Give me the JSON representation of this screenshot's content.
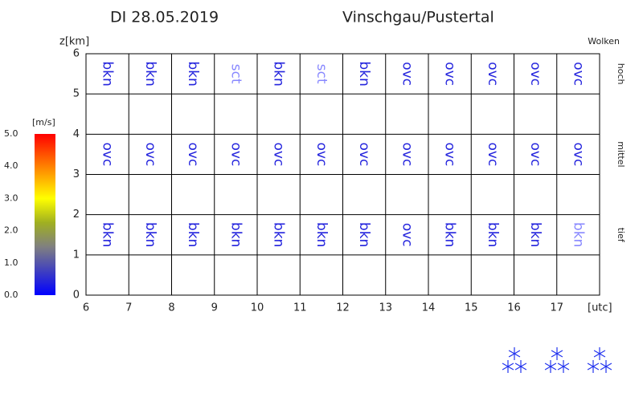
{
  "chart_data": {
    "type": "cloud-grid",
    "date": "DI 28.05.2019",
    "title": "Vinschgau/Pustertal",
    "y_label": "z[km]",
    "right_label": "Wolken",
    "x_unit": "[utc]",
    "xlim": [
      6,
      18
    ],
    "xticks": [
      6,
      7,
      8,
      9,
      10,
      11,
      12,
      13,
      14,
      15,
      16,
      17
    ],
    "ylim": [
      0,
      6
    ],
    "yticks": [
      0,
      1,
      2,
      3,
      4,
      5,
      6
    ],
    "layers": [
      {
        "name": "hoch",
        "values": [
          "bkn",
          "bkn",
          "bkn",
          "sct",
          "bkn",
          "sct",
          "bkn",
          "ovc",
          "ovc",
          "ovc",
          "ovc",
          "ovc"
        ],
        "colors": [
          "#2222dd",
          "#2222dd",
          "#2222dd",
          "#8888ff",
          "#2222dd",
          "#8888ff",
          "#2222dd",
          "#2222dd",
          "#2222dd",
          "#2222dd",
          "#2222dd",
          "#2222dd"
        ]
      },
      {
        "name": "mittel",
        "values": [
          "ovc",
          "ovc",
          "ovc",
          "ovc",
          "ovc",
          "ovc",
          "ovc",
          "ovc",
          "ovc",
          "ovc",
          "ovc",
          "ovc"
        ],
        "colors": [
          "#2222dd",
          "#2222dd",
          "#2222dd",
          "#2222dd",
          "#2222dd",
          "#2222dd",
          "#2222dd",
          "#2222dd",
          "#2222dd",
          "#2222dd",
          "#2222dd",
          "#2222dd"
        ]
      },
      {
        "name": "tief",
        "values": [
          "bkn",
          "bkn",
          "bkn",
          "bkn",
          "bkn",
          "bkn",
          "bkn",
          "ovc",
          "bkn",
          "bkn",
          "bkn",
          "bkn"
        ],
        "colors": [
          "#2222dd",
          "#2222dd",
          "#2222dd",
          "#2222dd",
          "#2222dd",
          "#2222dd",
          "#2222dd",
          "#2222dd",
          "#2222dd",
          "#2222dd",
          "#2222dd",
          "#8888ff"
        ]
      }
    ],
    "colorbar": {
      "label": "[m/s]",
      "lim": [
        0,
        5
      ],
      "ticks": [
        {
          "value": 0,
          "label": "0.0"
        },
        {
          "value": 1,
          "label": "1.0"
        },
        {
          "value": 2,
          "label": "2.0"
        },
        {
          "value": 3,
          "label": "3.0"
        },
        {
          "value": 4,
          "label": "4.0"
        },
        {
          "value": 5,
          "label": "5.0"
        }
      ]
    }
  }
}
